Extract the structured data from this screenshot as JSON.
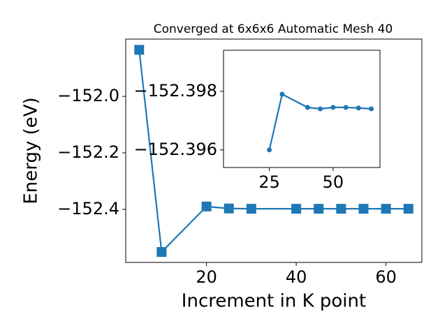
{
  "chart_data": [
    {
      "type": "line",
      "title": "Converged at 6x6x6 Automatic Mesh 40",
      "xlabel": "Increment in K point",
      "ylabel": "Energy (eV)",
      "x": [
        5,
        10,
        20,
        25,
        30,
        40,
        45,
        50,
        55,
        60,
        65
      ],
      "values": [
        -151.835,
        -152.551,
        -152.39,
        -152.397,
        -152.398,
        -152.398,
        -152.398,
        -152.398,
        -152.398,
        -152.398,
        -152.398
      ],
      "color": "#1f77b4",
      "marker": "square",
      "xlim": [
        2,
        68
      ],
      "xticks": [
        20,
        40,
        60
      ],
      "ylim": [
        -152.588,
        -151.797
      ],
      "yticks": [
        {
          "value": -152.4,
          "label": "−152.4"
        },
        {
          "value": -152.2,
          "label": "−152.2"
        },
        {
          "value": -152.0,
          "label": "−152.0"
        }
      ]
    },
    {
      "type": "line",
      "x": [
        25,
        30,
        40,
        45,
        50,
        55,
        60,
        65
      ],
      "values": [
        -152.396,
        -152.3979,
        -152.39745,
        -152.3974,
        -152.39745,
        -152.39745,
        -152.39743,
        -152.3974
      ],
      "color": "#1f77b4",
      "marker": "circle",
      "xlim": [
        7,
        68.4
      ],
      "xticks": [
        25,
        50
      ],
      "ylim": [
        -152.3954,
        -152.3994
      ],
      "yticks": [
        {
          "value": -152.398,
          "label": "−152.398"
        },
        {
          "value": -152.396,
          "label": "−152.396"
        }
      ]
    }
  ]
}
